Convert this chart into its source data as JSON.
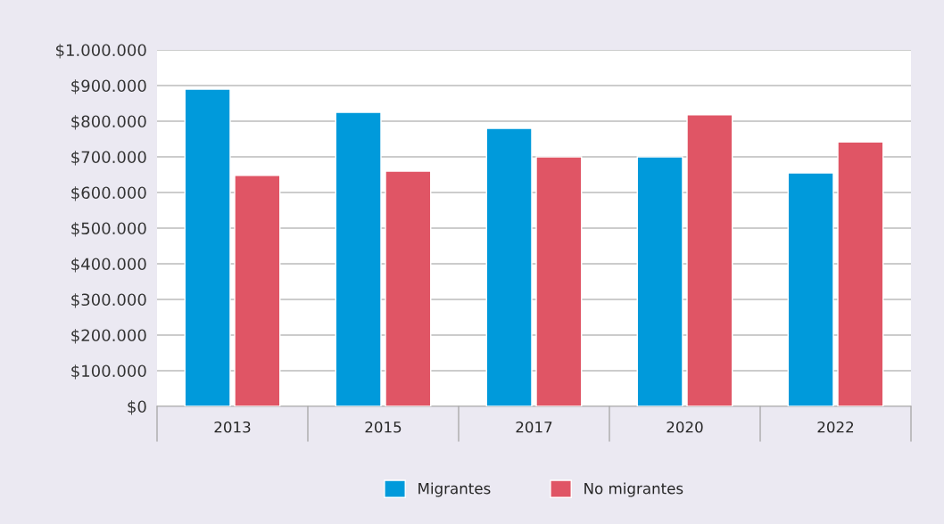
{
  "chart_data": {
    "type": "bar",
    "categories": [
      "2013",
      "2015",
      "2017",
      "2020",
      "2022"
    ],
    "series": [
      {
        "name": "Migrantes",
        "color": "#009adb",
        "values": [
          890000,
          825000,
          780000,
          700000,
          655000
        ]
      },
      {
        "name": "No migrantes",
        "color": "#e05565",
        "values": [
          648000,
          660000,
          700000,
          818000,
          742000
        ]
      }
    ],
    "ylim": [
      0,
      1000000
    ],
    "yticks": [
      {
        "value": 0,
        "label": "$0"
      },
      {
        "value": 100000,
        "label": "$100.000"
      },
      {
        "value": 200000,
        "label": "$200.000"
      },
      {
        "value": 300000,
        "label": "$300.000"
      },
      {
        "value": 400000,
        "label": "$400.000"
      },
      {
        "value": 500000,
        "label": "$500.000"
      },
      {
        "value": 600000,
        "label": "$600.000"
      },
      {
        "value": 700000,
        "label": "$700.000"
      },
      {
        "value": 800000,
        "label": "$800.000"
      },
      {
        "value": 900000,
        "label": "$900.000"
      },
      {
        "value": 1000000,
        "label": "$1.000.000"
      }
    ],
    "grid": "y",
    "legend": "bottom"
  }
}
